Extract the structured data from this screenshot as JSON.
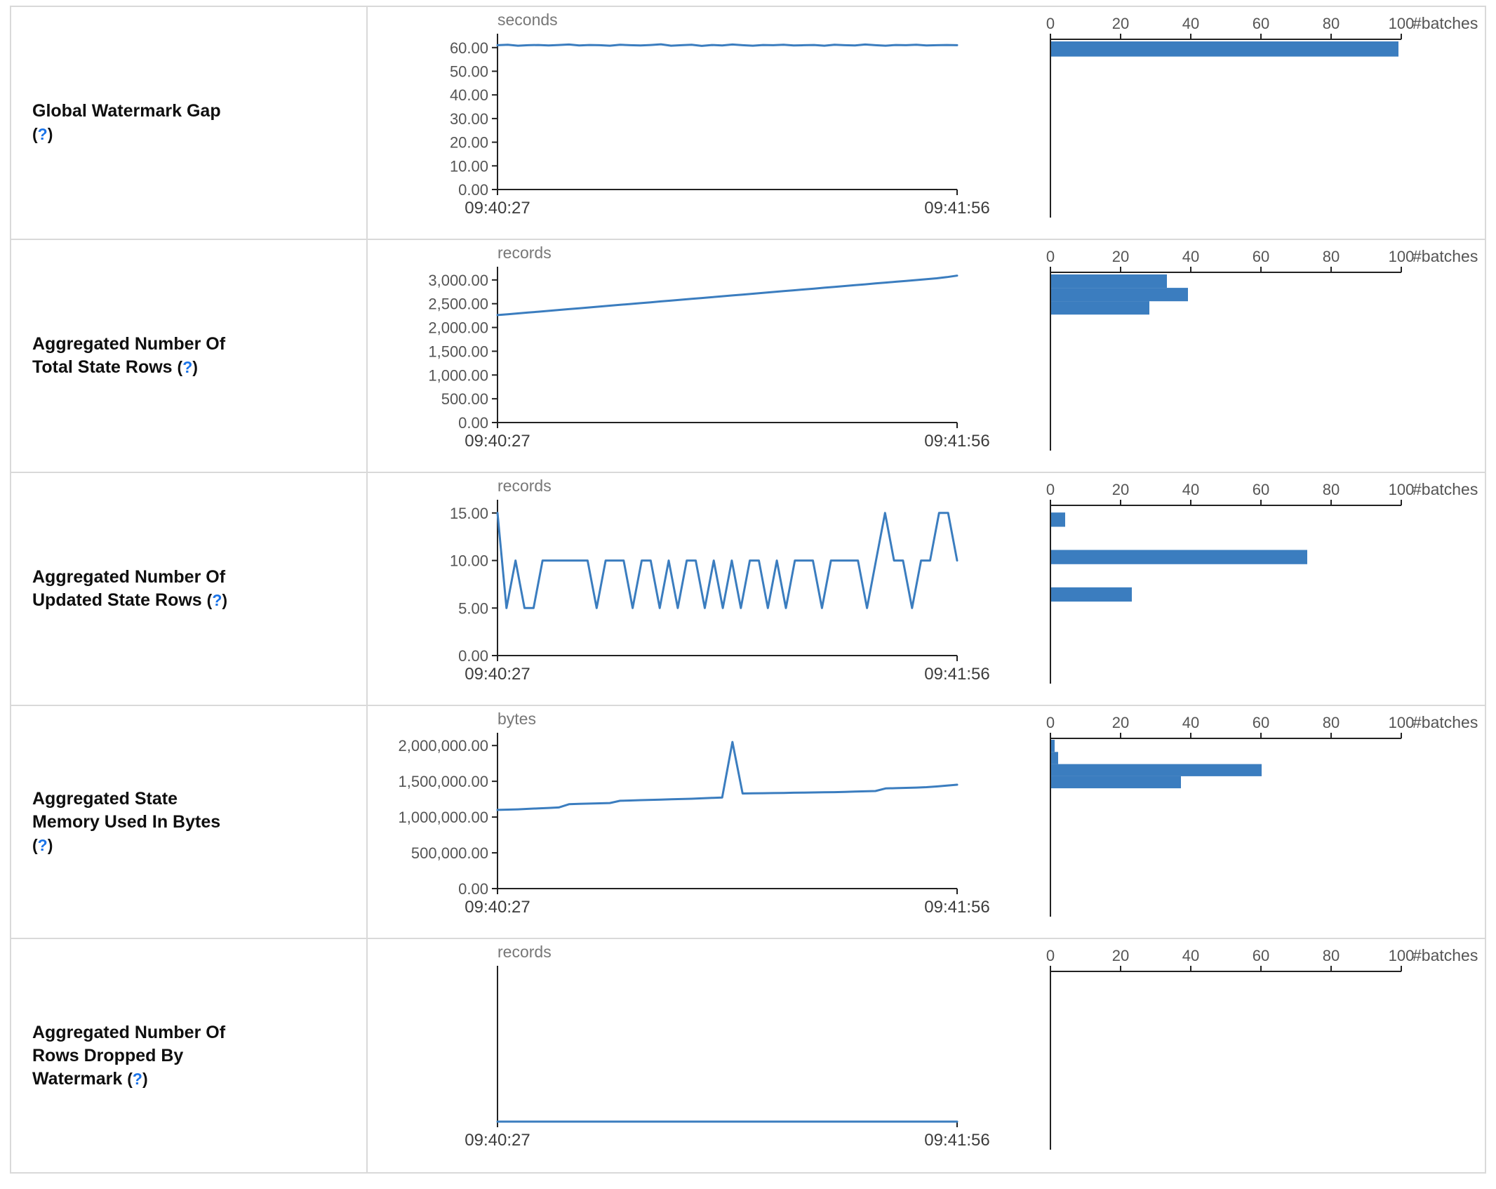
{
  "colors": {
    "accent": "#3b7dbf",
    "axis": "#222222",
    "tick_label": "#555555",
    "time_label": "#3c3c3c",
    "unit_label": "#777777",
    "help_link": "#1a73e8",
    "border": "#d9d9d9",
    "label_text": "#0f0f0f"
  },
  "help": {
    "open": "(",
    "mark": "?",
    "close": ")"
  },
  "chart_data": [
    {
      "row_label": "Global Watermark Gap",
      "timeline": {
        "type": "line",
        "unit": "seconds",
        "x_ticks": [
          "09:40:27",
          "09:41:56"
        ],
        "y_ticks": [
          0,
          10,
          20,
          30,
          40,
          50,
          60
        ],
        "y_tick_labels": [
          "0.00",
          "10.00",
          "20.00",
          "30.00",
          "40.00",
          "50.00",
          "60.00"
        ],
        "ylim": [
          0,
          63.5
        ],
        "values": [
          61,
          61.2,
          60.8,
          61,
          61.1,
          60.9,
          61.1,
          61.3,
          60.9,
          61.1,
          61,
          60.8,
          61.2,
          61,
          60.9,
          61.1,
          61.4,
          60.8,
          61,
          61.2,
          60.7,
          61.1,
          60.9,
          61.3,
          61,
          60.8,
          61.1,
          61,
          61.2,
          60.9,
          61,
          61.1,
          60.8,
          61.2,
          61,
          60.9,
          61.3,
          61,
          60.8,
          61.1,
          61,
          61.2,
          60.9,
          61,
          61.1,
          61
        ]
      },
      "histogram": {
        "type": "bar",
        "xlabel": "#batches",
        "x_ticks": [
          0,
          20,
          40,
          60,
          80,
          100
        ],
        "xlim": [
          0,
          100
        ],
        "bars": [
          {
            "pos": 0.012,
            "size": 0.085,
            "count": 99
          }
        ]
      }
    },
    {
      "row_label": "Aggregated Number Of Total State Rows",
      "timeline": {
        "type": "line",
        "unit": "records",
        "x_ticks": [
          "09:40:27",
          "09:41:56"
        ],
        "y_ticks": [
          0,
          500,
          1000,
          1500,
          2000,
          2500,
          3000
        ],
        "y_tick_labels": [
          "0.00",
          "500.00",
          "1,000.00",
          "1,500.00",
          "2,000.00",
          "2,500.00",
          "3,000.00"
        ],
        "ylim": [
          0,
          3160
        ],
        "values": [
          2260,
          2278,
          2296,
          2314,
          2332,
          2350,
          2368,
          2386,
          2404,
          2422,
          2440,
          2458,
          2476,
          2494,
          2512,
          2530,
          2548,
          2566,
          2584,
          2602,
          2620,
          2638,
          2656,
          2674,
          2692,
          2710,
          2728,
          2746,
          2764,
          2782,
          2800,
          2818,
          2836,
          2854,
          2872,
          2890,
          2908,
          2926,
          2944,
          2962,
          2980,
          2998,
          3016,
          3034,
          3060,
          3090
        ]
      },
      "histogram": {
        "type": "bar",
        "xlabel": "#batches",
        "x_ticks": [
          0,
          20,
          40,
          60,
          80,
          100
        ],
        "xlim": [
          0,
          100
        ],
        "bars": [
          {
            "pos": 0.012,
            "size": 0.075,
            "count": 33
          },
          {
            "pos": 0.087,
            "size": 0.075,
            "count": 39
          },
          {
            "pos": 0.162,
            "size": 0.075,
            "count": 28
          }
        ]
      }
    },
    {
      "row_label": "Aggregated Number Of Updated State Rows",
      "timeline": {
        "type": "line",
        "unit": "records",
        "x_ticks": [
          "09:40:27",
          "09:41:56"
        ],
        "y_ticks": [
          0,
          5,
          10,
          15
        ],
        "y_tick_labels": [
          "0.00",
          "5.00",
          "10.00",
          "15.00"
        ],
        "ylim": [
          0,
          15.8
        ],
        "values": [
          15,
          5,
          10,
          5,
          5,
          10,
          10,
          10,
          10,
          10,
          10,
          5,
          10,
          10,
          10,
          5,
          10,
          10,
          5,
          10,
          5,
          10,
          10,
          5,
          10,
          5,
          10,
          5,
          10,
          10,
          5,
          10,
          5,
          10,
          10,
          10,
          5,
          10,
          10,
          10,
          10,
          5,
          10,
          15,
          10,
          10,
          5,
          10,
          10,
          15,
          15,
          10
        ]
      },
      "histogram": {
        "type": "bar",
        "xlabel": "#batches",
        "x_ticks": [
          0,
          20,
          40,
          60,
          80,
          100
        ],
        "xlim": [
          0,
          100
        ],
        "bars": [
          {
            "pos": 0.04,
            "size": 0.08,
            "count": 4
          },
          {
            "pos": 0.25,
            "size": 0.08,
            "count": 73
          },
          {
            "pos": 0.46,
            "size": 0.08,
            "count": 23
          }
        ]
      }
    },
    {
      "row_label": "Aggregated State Memory Used In Bytes",
      "timeline": {
        "type": "line",
        "unit": "bytes",
        "x_ticks": [
          "09:40:27",
          "09:41:56"
        ],
        "y_ticks": [
          0,
          500000,
          1000000,
          1500000,
          2000000
        ],
        "y_tick_labels": [
          "0.00",
          "500,000.00",
          "1,000,000.00",
          "1,500,000.00",
          "2,000,000.00"
        ],
        "ylim": [
          0,
          2100000
        ],
        "values": [
          1100000,
          1104000,
          1108000,
          1115000,
          1122000,
          1128000,
          1134000,
          1180000,
          1184000,
          1188000,
          1192000,
          1196000,
          1228000,
          1232000,
          1236000,
          1240000,
          1244000,
          1248000,
          1252000,
          1256000,
          1262000,
          1268000,
          1274000,
          2050000,
          1330000,
          1332000,
          1334000,
          1336000,
          1338000,
          1340000,
          1342000,
          1344000,
          1346000,
          1348000,
          1352000,
          1356000,
          1360000,
          1364000,
          1400000,
          1404000,
          1408000,
          1412000,
          1418000,
          1428000,
          1440000,
          1452000
        ]
      },
      "histogram": {
        "type": "bar",
        "xlabel": "#batches",
        "x_ticks": [
          0,
          20,
          40,
          60,
          80,
          100
        ],
        "xlim": [
          0,
          100
        ],
        "bars": [
          {
            "pos": 0.008,
            "size": 0.068,
            "count": 1
          },
          {
            "pos": 0.076,
            "size": 0.068,
            "count": 2
          },
          {
            "pos": 0.144,
            "size": 0.068,
            "count": 60
          },
          {
            "pos": 0.212,
            "size": 0.068,
            "count": 37
          }
        ]
      }
    },
    {
      "row_label": "Aggregated Number Of Rows Dropped By Watermark",
      "timeline": {
        "type": "line",
        "unit": "records",
        "x_ticks": [
          "09:40:27",
          "09:41:56"
        ],
        "y_ticks": [],
        "y_tick_labels": [],
        "ylim": [
          0,
          1
        ],
        "values": [
          0,
          0,
          0,
          0,
          0,
          0,
          0,
          0,
          0,
          0
        ]
      },
      "histogram": {
        "type": "bar",
        "xlabel": "#batches",
        "x_ticks": [
          0,
          20,
          40,
          60,
          80,
          100
        ],
        "xlim": [
          0,
          100
        ],
        "bars": []
      }
    }
  ]
}
